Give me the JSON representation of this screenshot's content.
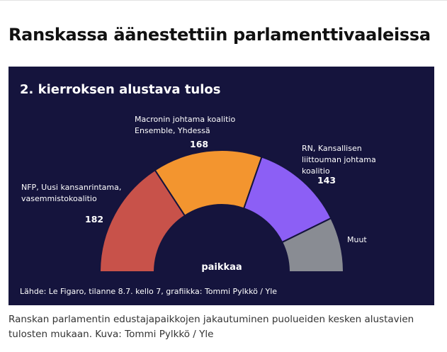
{
  "header": {
    "title": "Ranskassa äänestettiin parlamenttivaaleissa"
  },
  "chart_data": {
    "type": "semicircle",
    "title": "2. kierroksen alustava tulos",
    "center_label": "paikkaa",
    "source": "Lähde: Le Figaro, tilanne 8.7. kello 7, grafiikka: Tommi Pylkkö / Yle",
    "categories": [
      "NFP, Uusi kansanrintama, vasemmistokoalitio",
      "Macronin johtama koalitio Ensemble, Yhdessä",
      "RN, Kansallisen liittouman johtama koalitio",
      "Muut"
    ],
    "values": [
      182,
      168,
      143,
      84
    ],
    "colors": [
      "#c8524a",
      "#f3952f",
      "#8c5ff5",
      "#898c93"
    ]
  },
  "caption": "Ranskan parlamentin edustajapaikkojen jakautuminen puolueiden kesken alustavien tulosten mukaan. Kuva: Tommi Pylkkö / Yle"
}
